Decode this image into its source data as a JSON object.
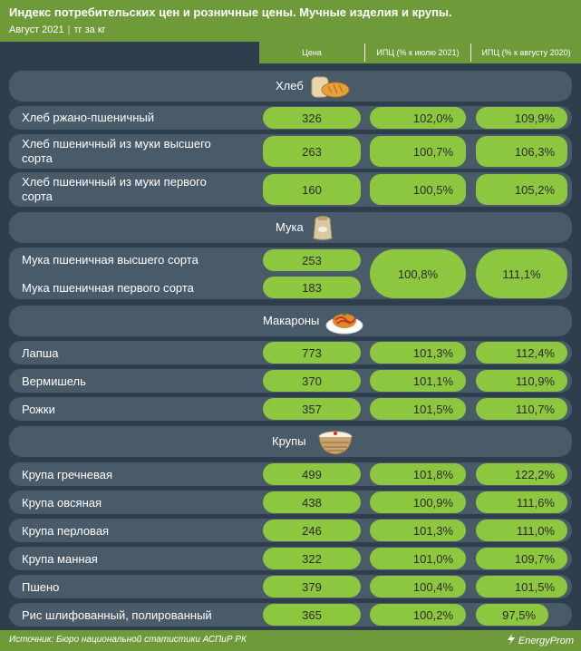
{
  "title": "Индекс потребительских цен и розничные цены. Мучные изделия и крупы.",
  "subtitle_period": "Август 2021",
  "subtitle_unit": "тг за кг",
  "subtitle_sep": "|",
  "columns": {
    "price": "Цена",
    "ipc_month": "ИПЦ (% к июлю 2021)",
    "ipc_year": "ИПЦ (% к августу 2020)"
  },
  "sections": {
    "bread": "Хлеб",
    "flour": "Мука",
    "pasta": "Макароны",
    "grains": "Крупы"
  },
  "rows": [
    {
      "name": "Хлеб ржано-пшеничный",
      "price": "326",
      "ipc_month": "102,0%",
      "ipc_year": "109,9%"
    },
    {
      "name": "Хлеб пшеничный из муки высшего сорта",
      "price": "263",
      "ipc_month": "100,7%",
      "ipc_year": "106,3%"
    },
    {
      "name": "Хлеб пшеничный из муки первого сорта",
      "price": "160",
      "ipc_month": "100,5%",
      "ipc_year": "105,2%"
    },
    {
      "name": "Мука пшеничная высшего сорта",
      "price": "253",
      "ipc_month": "100,8%",
      "ipc_year": "111,1%"
    },
    {
      "name": "Мука пшеничная первого сорта",
      "price": "183",
      "ipc_month": "100,8%",
      "ipc_year": "111,1%"
    },
    {
      "name": "Лапша",
      "price": "773",
      "ipc_month": "101,3%",
      "ipc_year": "112,4%"
    },
    {
      "name": "Вермишель",
      "price": "370",
      "ipc_month": "101,1%",
      "ipc_year": "110,9%"
    },
    {
      "name": "Рожки",
      "price": "357",
      "ipc_month": "101,5%",
      "ipc_year": "110,7%"
    },
    {
      "name": "Крупа гречневая",
      "price": "499",
      "ipc_month": "101,8%",
      "ipc_year": "122,2%"
    },
    {
      "name": "Крупа овсяная",
      "price": "438",
      "ipc_month": "100,9%",
      "ipc_year": "111,6%"
    },
    {
      "name": "Крупа перловая",
      "price": "246",
      "ipc_month": "101,3%",
      "ipc_year": "111,0%"
    },
    {
      "name": "Крупа манная",
      "price": "322",
      "ipc_month": "101,0%",
      "ipc_year": "109,7%"
    },
    {
      "name": "Пшено",
      "price": "379",
      "ipc_month": "100,4%",
      "ipc_year": "101,5%"
    },
    {
      "name": "Рис шлифованный, полированный",
      "price": "365",
      "ipc_month": "100,2%",
      "ipc_year": "97,5%"
    }
  ],
  "flour_merged": {
    "ipc_month": "100,8%",
    "ipc_year": "111,1%"
  },
  "footer": {
    "source": "Источник: Бюро национальной статистики АСПиР РК",
    "brand": "EnergyProm"
  },
  "icons": [
    "bread-icon",
    "flour-sack-icon",
    "pasta-plate-icon",
    "grain-bowl-icon",
    "energyprom-logo-icon"
  ],
  "colors": {
    "accent_green": "#8dc63f",
    "header_green": "#6f9a3a",
    "background": "#2e3e4c",
    "row": "#495a68"
  },
  "chart_data": {
    "type": "table",
    "title": "Индекс потребительских цен и розничные цены. Мучные изделия и крупы.",
    "columns": [
      "Цена",
      "ИПЦ (% к июлю 2021)",
      "ИПЦ (% к августу 2020)"
    ],
    "groups": [
      {
        "name": "Хлеб",
        "items": [
          {
            "name": "Хлеб ржано-пшеничный",
            "price": 326,
            "ipc_month": 102.0,
            "ipc_year": 109.9
          },
          {
            "name": "Хлеб пшеничный из муки высшего сорта",
            "price": 263,
            "ipc_month": 100.7,
            "ipc_year": 106.3
          },
          {
            "name": "Хлеб пшеничный из муки первого сорта",
            "price": 160,
            "ipc_month": 100.5,
            "ipc_year": 105.2
          }
        ]
      },
      {
        "name": "Мука",
        "items": [
          {
            "name": "Мука пшеничная высшего сорта",
            "price": 253,
            "ipc_month": 100.8,
            "ipc_year": 111.1
          },
          {
            "name": "Мука пшеничная первого сорта",
            "price": 183,
            "ipc_month": 100.8,
            "ipc_year": 111.1
          }
        ]
      },
      {
        "name": "Макароны",
        "items": [
          {
            "name": "Лапша",
            "price": 773,
            "ipc_month": 101.3,
            "ipc_year": 112.4
          },
          {
            "name": "Вермишель",
            "price": 370,
            "ipc_month": 101.1,
            "ipc_year": 110.9
          },
          {
            "name": "Рожки",
            "price": 357,
            "ipc_month": 101.5,
            "ipc_year": 110.7
          }
        ]
      },
      {
        "name": "Крупы",
        "items": [
          {
            "name": "Крупа гречневая",
            "price": 499,
            "ipc_month": 101.8,
            "ipc_year": 122.2
          },
          {
            "name": "Крупа овсяная",
            "price": 438,
            "ipc_month": 100.9,
            "ipc_year": 111.6
          },
          {
            "name": "Крупа перловая",
            "price": 246,
            "ipc_month": 101.3,
            "ipc_year": 111.0
          },
          {
            "name": "Крупа манная",
            "price": 322,
            "ipc_month": 101.0,
            "ipc_year": 109.7
          },
          {
            "name": "Пшено",
            "price": 379,
            "ipc_month": 100.4,
            "ipc_year": 101.5
          },
          {
            "name": "Рис шлифованный, полированный",
            "price": 365,
            "ipc_month": 100.2,
            "ipc_year": 97.5
          }
        ]
      }
    ]
  }
}
